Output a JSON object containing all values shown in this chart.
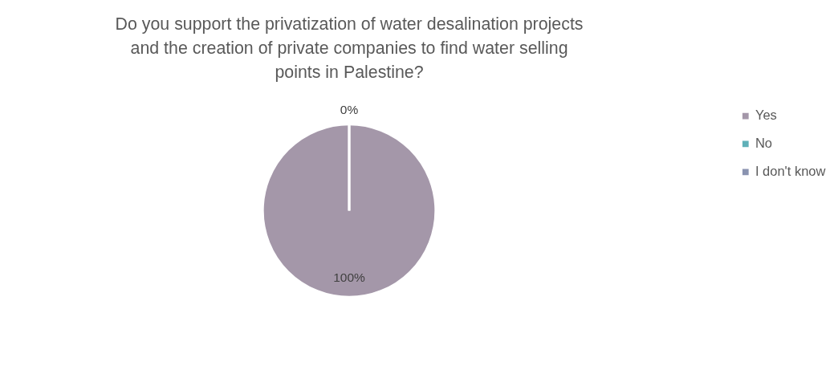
{
  "chart_data": {
    "type": "pie",
    "title": [
      "Do you support the privatization of water desalination projects",
      "and the creation of private companies to find water selling",
      "points in Palestine?"
    ],
    "categories": [
      "Yes",
      "No",
      "I don't know"
    ],
    "values": [
      100,
      0,
      0
    ],
    "colors": [
      "#a497a9",
      "#5fb0b8",
      "#8a93b0"
    ],
    "value_labels": [
      "100%",
      "0%",
      null
    ],
    "legend": "right"
  }
}
